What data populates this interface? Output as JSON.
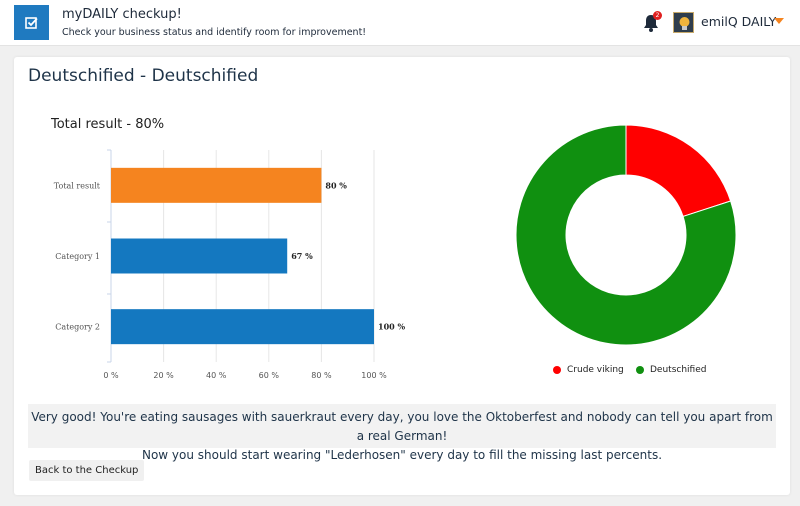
{
  "header": {
    "app_title": "myDAILY checkup!",
    "app_subtitle": "Check your business status and identify room for improvement!",
    "notification_count": "2",
    "user_name": "emilQ DAILY",
    "brand_color": "#1f7ac0",
    "accent_color": "#f5841f"
  },
  "result": {
    "title": "Deutschified - Deutschified"
  },
  "chart_data": [
    {
      "type": "bar",
      "orientation": "horizontal",
      "title": "Total result - 80%",
      "categories": [
        "Total result",
        "Category 1",
        "Category 2"
      ],
      "values": [
        80,
        67,
        100
      ],
      "value_labels": [
        "80 %",
        "67 %",
        "100 %"
      ],
      "bar_colors": [
        "#f5841f",
        "#1478c0",
        "#1478c0"
      ],
      "xlim": [
        0,
        100
      ],
      "xticks": [
        "0 %",
        "20 %",
        "40 %",
        "60 %",
        "80 %",
        "100 %"
      ],
      "grid": true
    },
    {
      "type": "pie",
      "style": "donut",
      "labels": [
        "Crude viking",
        "Deutschified"
      ],
      "values": [
        20,
        80
      ],
      "colors": [
        "#ff0000",
        "#109010"
      ],
      "legend": "bottom"
    }
  ],
  "legend": {
    "items": [
      {
        "label": "Crude viking",
        "color": "#ff0000"
      },
      {
        "label": "Deutschified",
        "color": "#109010"
      }
    ]
  },
  "message": {
    "line1": "Very good! You're eating sausages with sauerkraut every day, you love the Oktoberfest and nobody can tell you apart from a real German!",
    "line2": "Now you should start wearing \"Lederhosen\" every day to fill the missing last percents."
  },
  "actions": {
    "back_label": "Back to the Checkup"
  }
}
